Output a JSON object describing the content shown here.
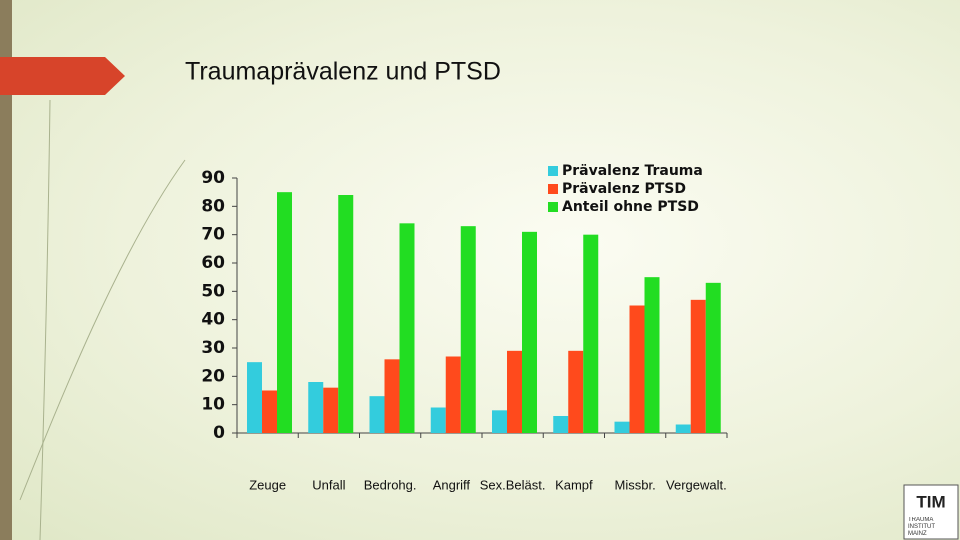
{
  "chart_data": {
    "type": "bar",
    "title": "Traumaprävalenz und PTSD",
    "categories": [
      "Zeuge",
      "Unfall",
      "Bedrohg.",
      "Angriff",
      "Sex.Beläst.",
      "Kampf",
      "Missbr.",
      "Vergewalt."
    ],
    "series": [
      {
        "name": "Prävalenz Trauma",
        "color": "#33ccdd",
        "values": [
          25,
          18,
          13,
          9,
          8,
          6,
          4,
          3
        ]
      },
      {
        "name": "Prävalenz PTSD",
        "color": "#ff4a1c",
        "values": [
          15,
          16,
          26,
          27,
          29,
          29,
          45,
          47
        ]
      },
      {
        "name": "Anteil ohne PTSD",
        "color": "#22dd22",
        "values": [
          85,
          84,
          74,
          73,
          71,
          70,
          55,
          53
        ]
      }
    ],
    "ylim": [
      0,
      90
    ],
    "yticks": [
      0,
      10,
      20,
      30,
      40,
      50,
      60,
      70,
      80,
      90
    ],
    "grid": false,
    "legend": "upper right"
  },
  "logo": {
    "mark": "TIM",
    "text": "TRAUMA INSTITUT MAINZ"
  }
}
